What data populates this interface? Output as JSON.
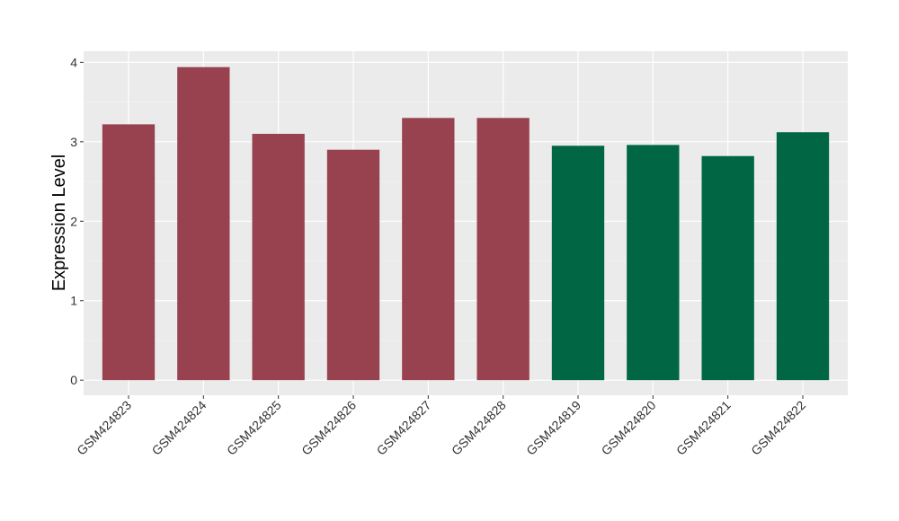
{
  "chart_data": {
    "type": "bar",
    "y_label": "Expression Level",
    "categories": [
      "GSM424823",
      "GSM424824",
      "GSM424825",
      "GSM424826",
      "GSM424827",
      "GSM424828",
      "GSM424819",
      "GSM424820",
      "GSM424821",
      "GSM424822"
    ],
    "values": [
      3.22,
      3.94,
      3.1,
      2.9,
      3.3,
      3.3,
      2.95,
      2.96,
      2.82,
      3.12
    ],
    "colors": [
      "#99424f",
      "#99424f",
      "#99424f",
      "#99424f",
      "#99424f",
      "#99424f",
      "#006644",
      "#006644",
      "#006644",
      "#006644"
    ],
    "ylim": [
      -0.19,
      4.14
    ],
    "yticks": [
      0,
      1,
      2,
      3,
      4
    ],
    "grid": true
  }
}
